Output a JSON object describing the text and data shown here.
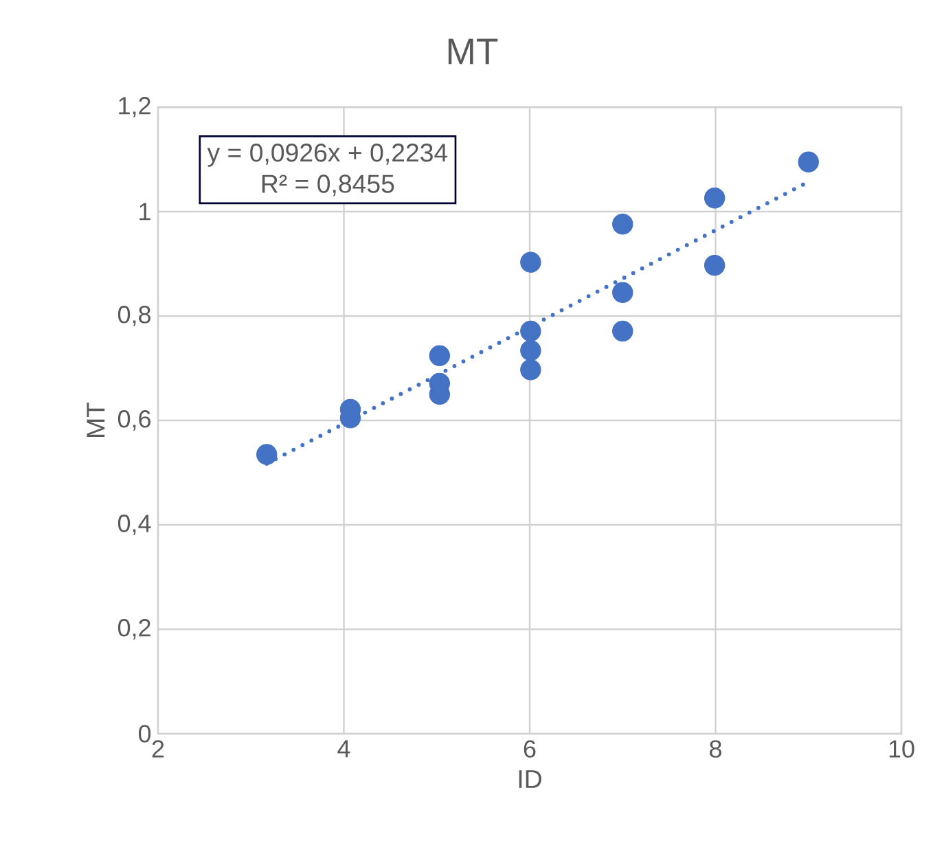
{
  "chart_data": {
    "type": "scatter",
    "title": "MT",
    "xlabel": "ID",
    "ylabel": "MT",
    "xlim": [
      2,
      10
    ],
    "xticks": [
      2,
      4,
      6,
      8,
      10
    ],
    "ylim": [
      0,
      1.2
    ],
    "yticks": [
      0,
      {
        "value": 0.2,
        "label": "0,2"
      },
      {
        "value": 0.4,
        "label": "0,4"
      },
      {
        "value": 0.6,
        "label": "0,6"
      },
      {
        "value": 0.8,
        "label": "0,8"
      },
      1,
      {
        "value": 1.2,
        "label": "1,2"
      }
    ],
    "grid": true,
    "marker": "circle",
    "annotations": [
      "y = 0,0926x + 0,2234",
      "R² = 0,8455"
    ],
    "series": [
      {
        "color": "#4472c4",
        "x": [
          3.17,
          4.07,
          4.07,
          5.03,
          5.03,
          5.03,
          6.01,
          6.01,
          6.01,
          6.01,
          7.0,
          7.0,
          7.0,
          7.99,
          7.99,
          9.0
        ],
        "values": [
          0.535,
          0.621,
          0.605,
          0.724,
          0.671,
          0.65,
          0.903,
          0.771,
          0.734,
          0.697,
          0.976,
          0.845,
          0.771,
          1.026,
          0.897,
          1.095
        ]
      },
      {
        "type": "line",
        "color": "#4472c4",
        "line_style": "dotted",
        "marker": "none",
        "x": [
          3.17,
          9.0
        ],
        "values": [
          0.517,
          1.057
        ]
      }
    ]
  }
}
